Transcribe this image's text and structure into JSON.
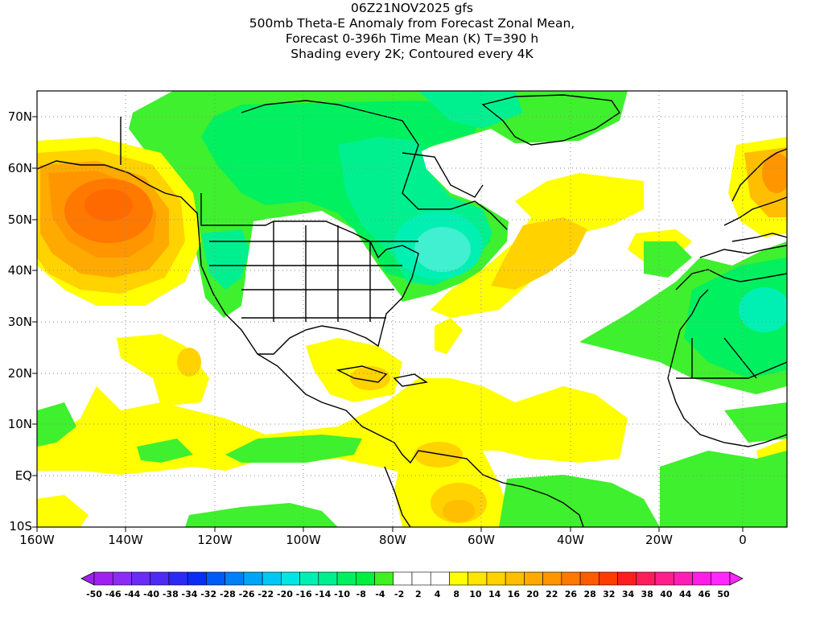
{
  "title": {
    "line1": "06Z21NOV2025 gfs",
    "line2": "500mb Theta-E Anomaly from Forecast Zonal Mean,",
    "line3": "Forecast 0-396h Time Mean (K) T=390 h",
    "line4": "Shading every 2K; Contoured every 4K"
  },
  "lat_labels": [
    "70N",
    "60N",
    "50N",
    "40N",
    "30N",
    "20N",
    "10N",
    "EQ",
    "10S"
  ],
  "lon_labels": [
    "160W",
    "140W",
    "120W",
    "100W",
    "80W",
    "60W",
    "40W",
    "20W",
    "0"
  ],
  "colorbar": {
    "labels": [
      "-50",
      "-46",
      "-44",
      "-40",
      "-38",
      "-34",
      "-32",
      "-28",
      "-26",
      "-22",
      "-20",
      "-16",
      "-14",
      "-10",
      "-8",
      "-4",
      "-2",
      "2",
      "4",
      "8",
      "10",
      "14",
      "16",
      "20",
      "22",
      "26",
      "28",
      "32",
      "34",
      "38",
      "40",
      "44",
      "46",
      "50"
    ],
    "colors": [
      "#a020f0",
      "#8b2bf5",
      "#6a2bf7",
      "#4d2bf5",
      "#2b2bf5",
      "#0a2cf5",
      "#005af5",
      "#0080f5",
      "#00a4f5",
      "#00c8f5",
      "#00e6e6",
      "#00f0b4",
      "#00f090",
      "#00f060",
      "#00f040",
      "#40f020",
      "#ffffff",
      "#ffffff",
      "#ffffff",
      "#ffff00",
      "#ffe600",
      "#ffd200",
      "#ffbe00",
      "#ffaa00",
      "#ff9600",
      "#ff7800",
      "#ff5a00",
      "#ff3c00",
      "#ff1e1e",
      "#ff1e5a",
      "#ff1e8c",
      "#ff1eb4",
      "#ff1ee6",
      "#ff28ff"
    ]
  }
}
